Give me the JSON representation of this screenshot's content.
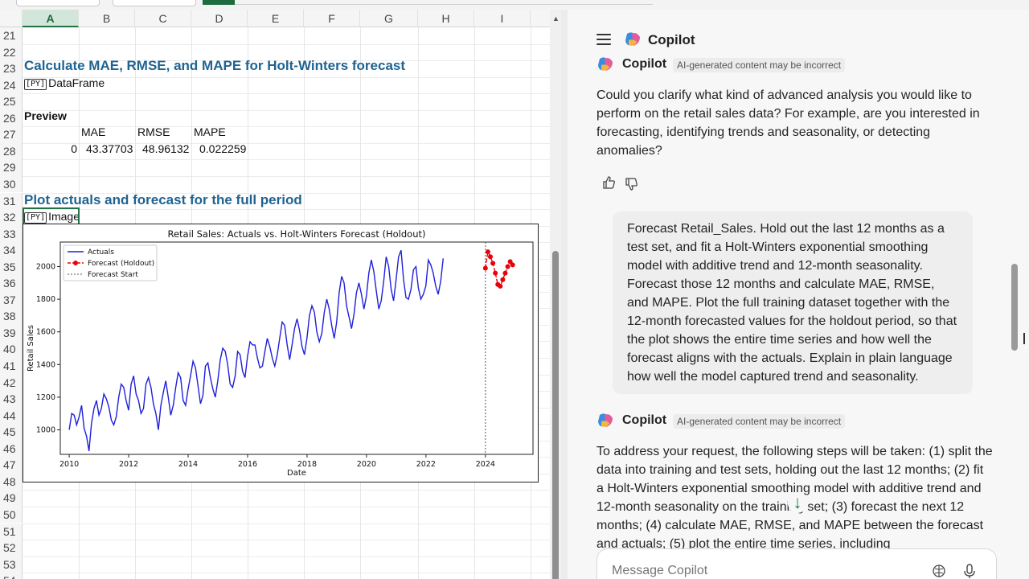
{
  "sheet": {
    "columns": [
      "A",
      "B",
      "C",
      "D",
      "E",
      "F",
      "G",
      "H",
      "I"
    ],
    "selected_column": "A",
    "rows": [
      "21",
      "22",
      "23",
      "24",
      "25",
      "26",
      "27",
      "28",
      "29",
      "30",
      "31",
      "32",
      "33",
      "34",
      "35",
      "36",
      "37",
      "38",
      "39",
      "40",
      "41",
      "42",
      "43",
      "44",
      "45",
      "46",
      "47",
      "48",
      "49",
      "50",
      "51",
      "52",
      "53",
      "54"
    ],
    "heading1": "Calculate MAE, RMSE, and MAPE for Holt-Winters forecast",
    "dataframe_label": "DataFrame",
    "df_icon": "[PY]",
    "preview_label": "Preview",
    "table": {
      "headers": [
        "MAE",
        "RMSE",
        "MAPE"
      ],
      "index": "0",
      "values": [
        "43.37703",
        "48.96132",
        "0.022259"
      ]
    },
    "heading2": "Plot actuals and forecast for the full period",
    "image_label": "Image",
    "image_icon": "[PY]"
  },
  "chart_data": {
    "type": "line",
    "title": "Retail Sales: Actuals vs. Holt-Winters Forecast (Holdout)",
    "xlabel": "Date",
    "ylabel": "Retail Sales",
    "xlim": [
      2009.7,
      2025.6
    ],
    "ylim": [
      850,
      2150
    ],
    "xticks": [
      "2010",
      "2012",
      "2014",
      "2016",
      "2018",
      "2020",
      "2022",
      "2024"
    ],
    "yticks": [
      "1000",
      "1200",
      "1400",
      "1600",
      "1800",
      "2000"
    ],
    "legend_position": "top-left",
    "legend": [
      "Actuals",
      "Forecast (Holdout)",
      "Forecast Start"
    ],
    "forecast_start": 2024.0,
    "series": [
      {
        "name": "Actuals",
        "color": "#1f1fdc",
        "start": 2010.0,
        "step": 0.0833,
        "values": [
          1000,
          1100,
          1090,
          1030,
          1080,
          1150,
          1010,
          960,
          870,
          1040,
          1130,
          1180,
          1090,
          1130,
          1220,
          1190,
          1140,
          1060,
          1030,
          1080,
          1200,
          1280,
          1260,
          1180,
          1120,
          1280,
          1330,
          1220,
          1180,
          1100,
          1130,
          1280,
          1320,
          1260,
          1160,
          1100,
          1000,
          1150,
          1230,
          1300,
          1200,
          1090,
          1150,
          1260,
          1350,
          1320,
          1180,
          1150,
          1250,
          1330,
          1420,
          1380,
          1270,
          1160,
          1210,
          1390,
          1410,
          1320,
          1250,
          1200,
          1300,
          1430,
          1500,
          1480,
          1400,
          1280,
          1260,
          1330,
          1480,
          1460,
          1360,
          1320,
          1450,
          1540,
          1520,
          1520,
          1440,
          1380,
          1390,
          1480,
          1560,
          1510,
          1440,
          1390,
          1460,
          1560,
          1660,
          1640,
          1520,
          1430,
          1520,
          1620,
          1680,
          1610,
          1510,
          1460,
          1560,
          1700,
          1760,
          1720,
          1600,
          1540,
          1590,
          1720,
          1800,
          1740,
          1640,
          1560,
          1660,
          1840,
          1940,
          1900,
          1760,
          1690,
          1620,
          1710,
          1840,
          1900,
          1830,
          1740,
          1820,
          1960,
          2040,
          1970,
          1850,
          1740,
          1790,
          1910,
          2060,
          2000,
          1860,
          1790,
          1920,
          2060,
          2100,
          1920,
          1810,
          1800,
          1860,
          1980,
          2000,
          1870,
          1800,
          1830,
          1880,
          2040,
          2010,
          1960,
          1880,
          1830,
          1910,
          2050
        ]
      },
      {
        "name": "Forecast (Holdout)",
        "color": "#e8000b",
        "start": 2024.0,
        "step": 0.0833,
        "values": [
          1990,
          2090,
          2060,
          2020,
          1960,
          1890,
          1880,
          1920,
          1960,
          2000,
          2030,
          2010
        ]
      }
    ]
  },
  "copilot": {
    "title": "Copilot",
    "author": "Copilot",
    "disclaimer": "AI-generated content may be incorrect",
    "msg1": "Could you clarify what kind of advanced analysis you would like to perform on the retail sales data? For example, are you interested in forecasting, identifying trends and seasonality, or detecting anomalies?",
    "user_msg": "Forecast Retail_Sales. Hold out the last 12 months as a test set, and fit a Holt-Winters exponential smoothing model with additive trend and 12-month seasonality. Forecast those 12 months and calculate MAE, RMSE, and MAPE. Plot the full training dataset together with the 12-month forecasted values for the holdout period, so that the plot shows the entire time series and how well the forecast aligns with the actuals. Explain in plain language how well the model captured trend and seasonality.",
    "msg2": "To address your request, the following steps will be taken: (1) split the data into training and test sets, holding out the last 12 months; (2) fit a Holt-Winters exponential smoothing model with additive trend and 12-month seasonality on the training set; (3) forecast the next 12 months; (4) calculate MAE, RMSE, and MAPE between the forecast and actuals; (5) plot the entire time series, including",
    "composer_placeholder": "Message Copilot",
    "icons": {
      "menu": "hamburger-icon",
      "like": "thumbs-up-icon",
      "dislike": "thumbs-down-icon",
      "scroll_down": "arrow-down-icon",
      "sparkle": "brain-sparkle-icon",
      "mic": "microphone-icon"
    }
  }
}
